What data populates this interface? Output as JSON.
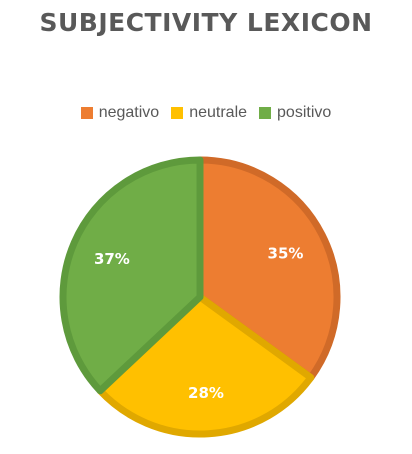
{
  "chart_data": {
    "type": "pie",
    "title": "SUBJECTIVITY LEXICON",
    "categories": [
      "negativo",
      "neutrale",
      "positivo"
    ],
    "values": [
      35,
      28,
      37
    ],
    "value_labels": [
      "35%",
      "28%",
      "37%"
    ],
    "colors": [
      "#ED7D31",
      "#FFC000",
      "#70AD47"
    ],
    "border_colors": [
      "#D06A28",
      "#E0A800",
      "#5E9A3C"
    ],
    "legend_position": "top"
  }
}
